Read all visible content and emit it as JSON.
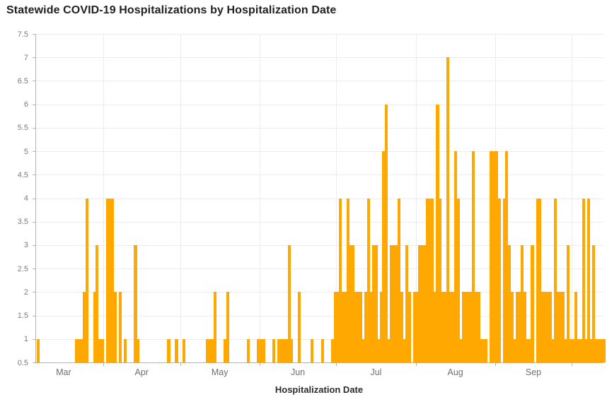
{
  "chart_data": {
    "type": "bar",
    "title": "Statewide COVID-19 Hospitalizations by Hospitalization Date",
    "xlabel": "Hospitalization Date",
    "ylabel": "",
    "bar_color": "#ffa802",
    "ylim": [
      0.5,
      7.5
    ],
    "y_tick_step": 0.5,
    "grid": true,
    "x_axis_note": "daily bars, ticks at month starts",
    "months": [
      {
        "label": "Mar",
        "days": 31
      },
      {
        "label": "Apr",
        "days": 30
      },
      {
        "label": "May",
        "days": 31
      },
      {
        "label": "Jun",
        "days": 30
      },
      {
        "label": "Jul",
        "days": 31
      },
      {
        "label": "Aug",
        "days": 31
      },
      {
        "label": "Sep",
        "days": 30
      },
      {
        "label": "",
        "days": 13
      }
    ],
    "start_label": "Mar 1",
    "daily_values": [
      0,
      0,
      0,
      0,
      0,
      1,
      0,
      0,
      0,
      0,
      0,
      0,
      0,
      0,
      0,
      0,
      0,
      0,
      0,
      0,
      1,
      1,
      1,
      2,
      4,
      0,
      0,
      2,
      3,
      1,
      1,
      0,
      4,
      4,
      4,
      2,
      0,
      2,
      0,
      1,
      0,
      0,
      0,
      3,
      1,
      0,
      0,
      0,
      0,
      0,
      0,
      0,
      0,
      0,
      0,
      0,
      1,
      0,
      0,
      1,
      0,
      0,
      1,
      0,
      0,
      0,
      0,
      0,
      0,
      0,
      0,
      1,
      1,
      1,
      2,
      0,
      0,
      0,
      1,
      2,
      0,
      0,
      0,
      0,
      0,
      0,
      0,
      1,
      0,
      0,
      0,
      1,
      1,
      1,
      0,
      0,
      0,
      1,
      0,
      1,
      1,
      1,
      1,
      3,
      1,
      0,
      0,
      2,
      0,
      0,
      0,
      0,
      1,
      0,
      0,
      0,
      1,
      0,
      0,
      0,
      1,
      2,
      2,
      4,
      2,
      2,
      4,
      3,
      3,
      2,
      2,
      2,
      1,
      2,
      4,
      2,
      3,
      3,
      1,
      2,
      5,
      6,
      1,
      3,
      3,
      3,
      4,
      2,
      1,
      3,
      2,
      0,
      2,
      2,
      3,
      3,
      3,
      4,
      4,
      4,
      2,
      6,
      4,
      2,
      2,
      7,
      2,
      2,
      5,
      4,
      1,
      2,
      2,
      2,
      2,
      5,
      2,
      2,
      1,
      1,
      1,
      0,
      5,
      5,
      5,
      4,
      0,
      4,
      5,
      3,
      2,
      1,
      2,
      2,
      3,
      2,
      1,
      1,
      3,
      0,
      4,
      4,
      2,
      2,
      2,
      2,
      1,
      4,
      2,
      2,
      2,
      1,
      3,
      1,
      1,
      2,
      1,
      1,
      4,
      1,
      4,
      1,
      3,
      1,
      1,
      1,
      1
    ]
  }
}
